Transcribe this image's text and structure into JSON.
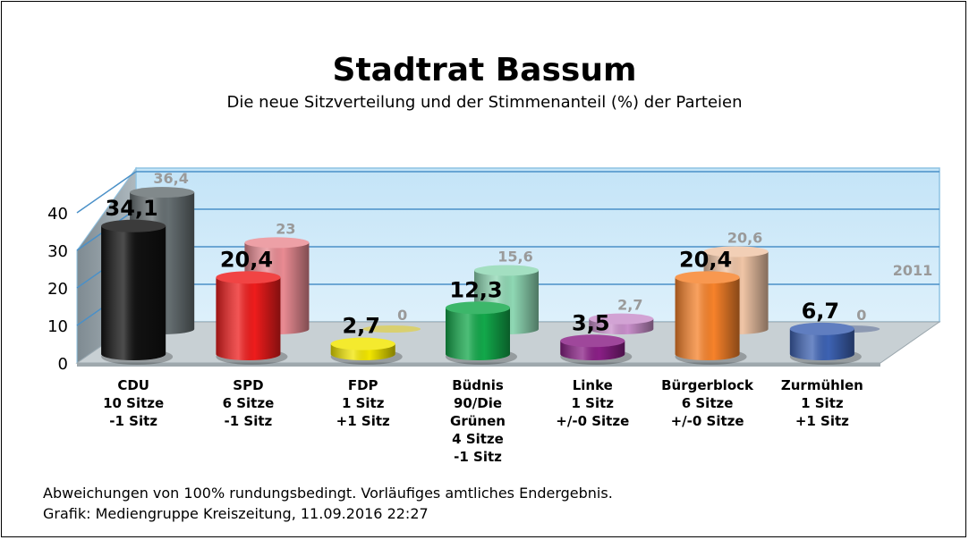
{
  "title": "Stadtrat Bassum",
  "subtitle": "Die neue Sitzverteilung und der Stimmenanteil (%) der Parteien",
  "footer": {
    "line1": "Abweichungen von 100% rundungsbedingt. Vorläufiges amtliches Endergebnis.",
    "line2": "Grafik: Mediengruppe Kreiszeitung, 11.09.2016 22:27"
  },
  "chart_data": {
    "type": "bar",
    "title": "Stadtrat Bassum",
    "subtitle": "Die neue Sitzverteilung und der Stimmenanteil (%) der Parteien",
    "xlabel": "",
    "ylabel": "",
    "ylim": [
      0,
      40
    ],
    "yticks": [
      "0",
      "10",
      "20",
      "30",
      "40"
    ],
    "grid": true,
    "categories": [
      [
        "CDU",
        "10 Sitze",
        "-1 Sitz"
      ],
      [
        "SPD",
        "6 Sitze",
        "-1 Sitz"
      ],
      [
        "FDP",
        "1 Sitz",
        "+1 Sitz"
      ],
      [
        "Büdnis",
        "90/Die",
        "Grünen",
        "4 Sitze",
        "-1 Sitz"
      ],
      [
        "Linke",
        "1 Sitz",
        "+/-0 Sitze"
      ],
      [
        "Bürgerblock",
        "6 Sitze",
        "+/-0 Sitze"
      ],
      [
        "Zurmühlen",
        "1 Sitz",
        "+1 Sitz"
      ]
    ],
    "series": [
      {
        "name": "",
        "values": [
          34.1,
          20.4,
          2.7,
          12.3,
          3.5,
          20.4,
          6.7
        ],
        "labels": [
          "34,1",
          "20,4",
          "2,7",
          "12,3",
          "3,5",
          "20,4",
          "6,7"
        ],
        "colors": [
          "#111111",
          "#ee1c1c",
          "#f2e600",
          "#12a84a",
          "#8a1f86",
          "#f7822a",
          "#3d62b3"
        ]
      },
      {
        "name": "2011",
        "values": [
          36.4,
          23,
          0,
          15.6,
          2.7,
          20.6,
          0
        ],
        "labels": [
          "36,4",
          "23",
          "0",
          "15,6",
          "2,7",
          "20,6",
          "0"
        ],
        "colors": [
          "#666f72",
          "#e98b93",
          "#d9d070",
          "#8fd8b4",
          "#c98fcb",
          "#f0c5a6",
          "#8c99b2"
        ]
      }
    ]
  }
}
